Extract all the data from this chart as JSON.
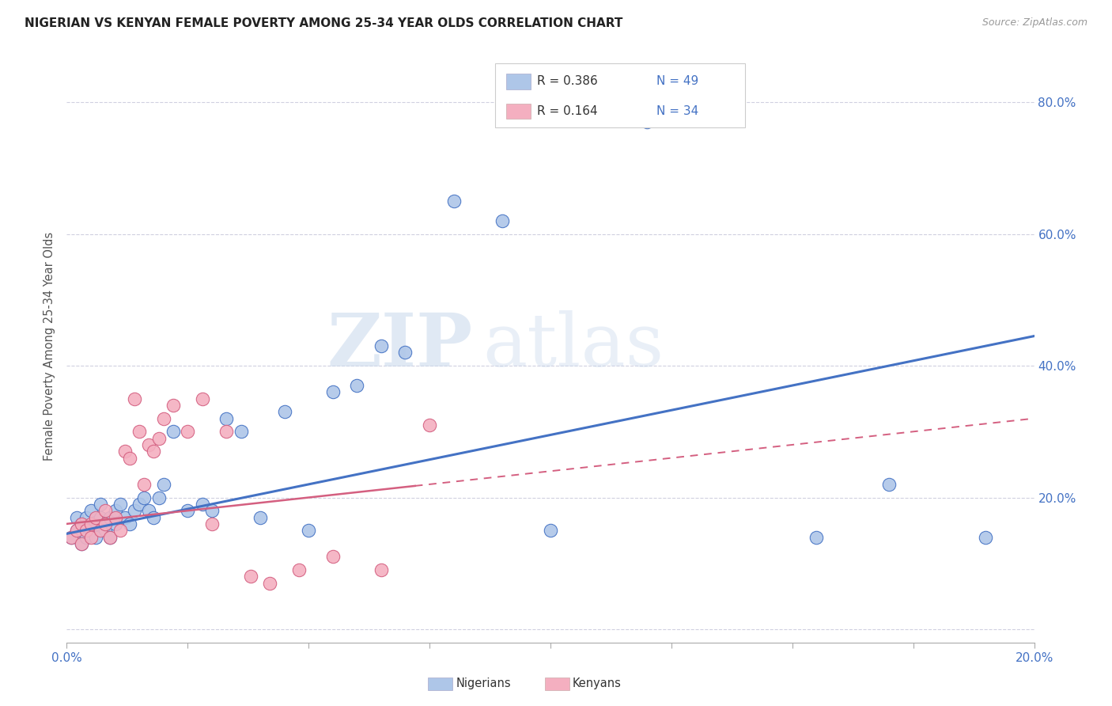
{
  "title": "NIGERIAN VS KENYAN FEMALE POVERTY AMONG 25-34 YEAR OLDS CORRELATION CHART",
  "source": "Source: ZipAtlas.com",
  "ylabel": "Female Poverty Among 25-34 Year Olds",
  "ytick_values": [
    0.0,
    0.2,
    0.4,
    0.6,
    0.8
  ],
  "xlim": [
    0.0,
    0.2
  ],
  "ylim": [
    -0.02,
    0.88
  ],
  "legend_r_nigerian": "R = 0.386",
  "legend_n_nigerian": "N = 49",
  "legend_r_kenyan": "R = 0.164",
  "legend_n_kenyan": "N = 34",
  "nigerian_color": "#aec6e8",
  "kenyan_color": "#f4afc0",
  "trendline_nigerian_color": "#4472c4",
  "trendline_kenyan_color": "#d45f80",
  "background_color": "#ffffff",
  "watermark_zip": "ZIP",
  "watermark_atlas": "atlas",
  "nigerian_x": [
    0.001,
    0.002,
    0.002,
    0.003,
    0.003,
    0.004,
    0.004,
    0.005,
    0.005,
    0.006,
    0.006,
    0.007,
    0.007,
    0.008,
    0.008,
    0.009,
    0.009,
    0.01,
    0.01,
    0.011,
    0.012,
    0.013,
    0.014,
    0.015,
    0.016,
    0.017,
    0.018,
    0.019,
    0.02,
    0.022,
    0.025,
    0.028,
    0.03,
    0.033,
    0.036,
    0.04,
    0.045,
    0.05,
    0.055,
    0.06,
    0.065,
    0.07,
    0.08,
    0.09,
    0.1,
    0.12,
    0.155,
    0.17,
    0.19
  ],
  "nigerian_y": [
    0.14,
    0.15,
    0.17,
    0.13,
    0.16,
    0.14,
    0.17,
    0.15,
    0.18,
    0.16,
    0.14,
    0.17,
    0.19,
    0.15,
    0.16,
    0.14,
    0.17,
    0.16,
    0.18,
    0.19,
    0.17,
    0.16,
    0.18,
    0.19,
    0.2,
    0.18,
    0.17,
    0.2,
    0.22,
    0.3,
    0.18,
    0.19,
    0.18,
    0.32,
    0.3,
    0.17,
    0.33,
    0.15,
    0.36,
    0.37,
    0.43,
    0.42,
    0.65,
    0.62,
    0.15,
    0.77,
    0.14,
    0.22,
    0.14
  ],
  "kenyan_x": [
    0.001,
    0.002,
    0.003,
    0.003,
    0.004,
    0.005,
    0.005,
    0.006,
    0.007,
    0.008,
    0.008,
    0.009,
    0.01,
    0.011,
    0.012,
    0.013,
    0.014,
    0.015,
    0.016,
    0.017,
    0.018,
    0.019,
    0.02,
    0.022,
    0.025,
    0.028,
    0.03,
    0.033,
    0.038,
    0.042,
    0.048,
    0.055,
    0.065,
    0.075
  ],
  "kenyan_y": [
    0.14,
    0.15,
    0.13,
    0.16,
    0.15,
    0.14,
    0.16,
    0.17,
    0.15,
    0.16,
    0.18,
    0.14,
    0.17,
    0.15,
    0.27,
    0.26,
    0.35,
    0.3,
    0.22,
    0.28,
    0.27,
    0.29,
    0.32,
    0.34,
    0.3,
    0.35,
    0.16,
    0.3,
    0.08,
    0.07,
    0.09,
    0.11,
    0.09,
    0.31
  ],
  "grid_color": "#d0d0e0",
  "title_color": "#222222",
  "axis_color": "#4472c4",
  "label_color": "#555555"
}
